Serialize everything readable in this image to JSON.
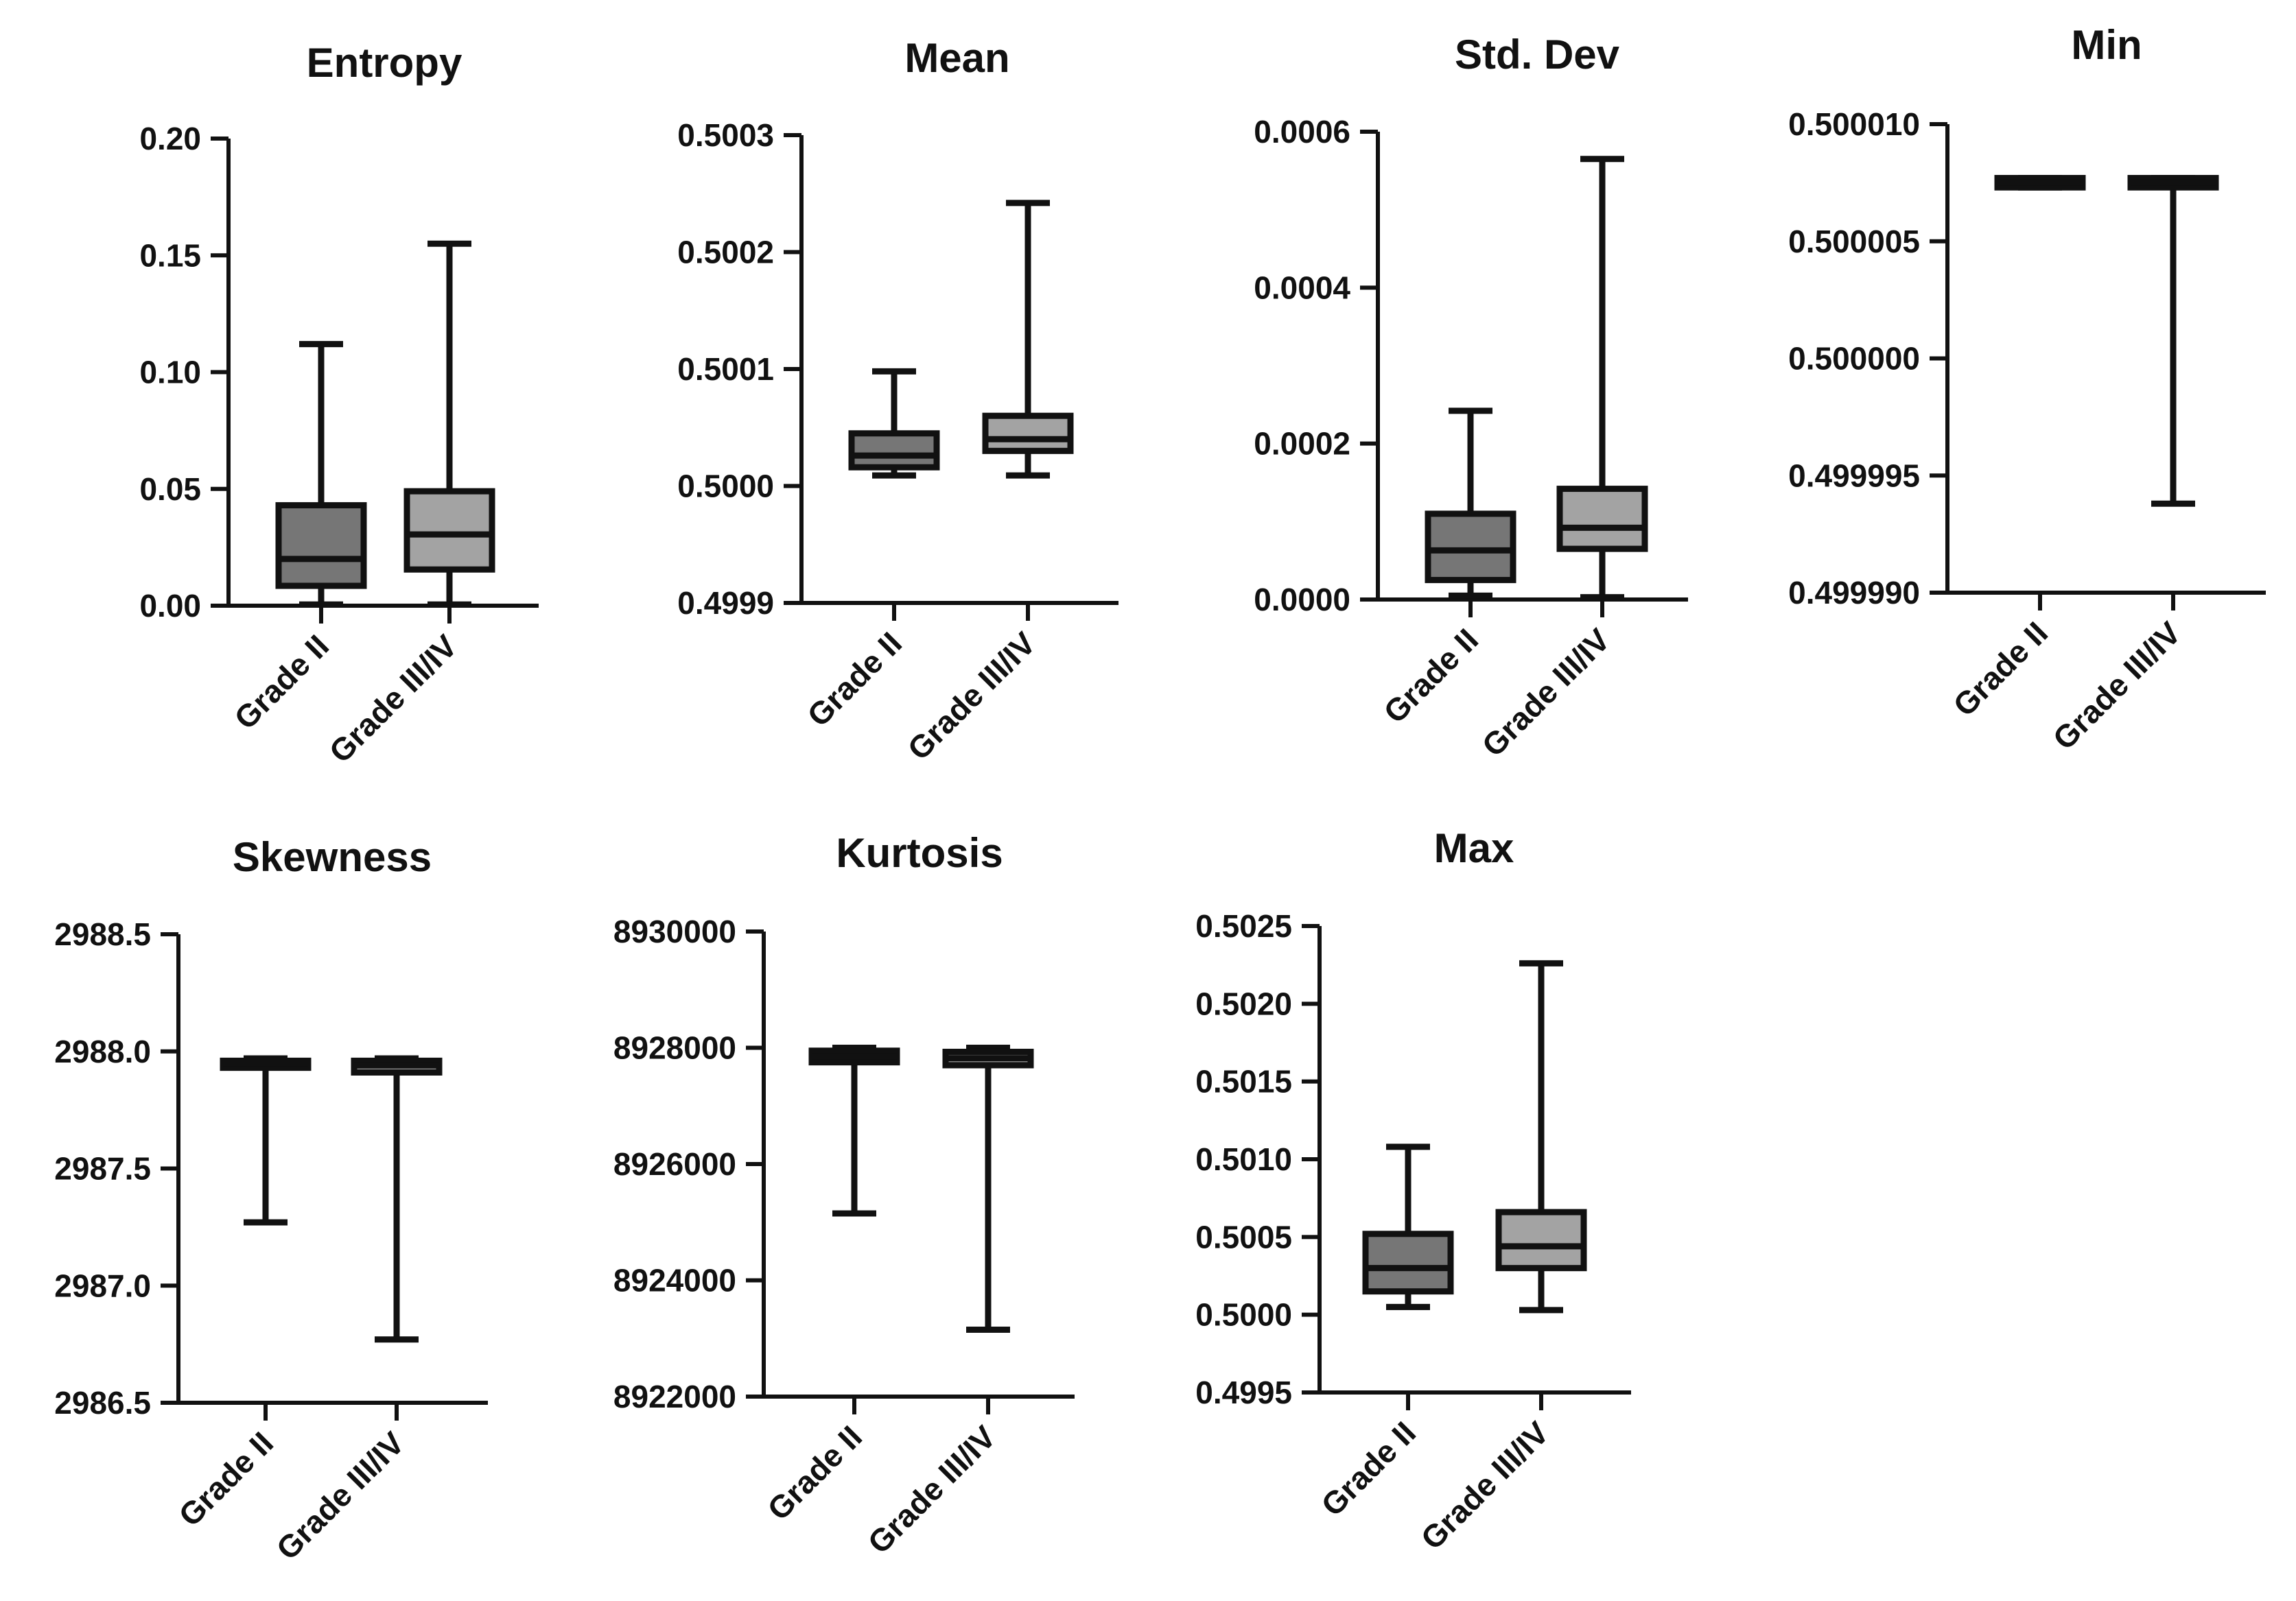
{
  "colors": {
    "grade_ii_box": "#767676",
    "grade_iii_iv_box": "#a3a3a3",
    "line": "#111111"
  },
  "chart_data": [
    {
      "type": "box",
      "title": "Entropy",
      "categories": [
        "Grade II",
        "Grade III/IV"
      ],
      "ylim": [
        0,
        0.2
      ],
      "yticks": [
        "0.00",
        "0.05",
        "0.10",
        "0.15",
        "0.20"
      ],
      "series": [
        {
          "name": "Grade II",
          "min": 0.0005,
          "q1": 0.0085,
          "median": 0.02,
          "q3": 0.043,
          "max": 0.112
        },
        {
          "name": "Grade III/IV",
          "min": 0.0005,
          "q1": 0.0155,
          "median": 0.0305,
          "q3": 0.049,
          "max": 0.155
        }
      ]
    },
    {
      "type": "box",
      "title": "Mean",
      "categories": [
        "Grade II",
        "Grade III/IV"
      ],
      "ylim": [
        0.4999,
        0.5003
      ],
      "yticks": [
        "0.4999",
        "0.5000",
        "0.5001",
        "0.5002",
        "0.5003"
      ],
      "series": [
        {
          "name": "Grade II",
          "min": 0.500009,
          "q1": 0.500016,
          "median": 0.500026,
          "q3": 0.500045,
          "max": 0.500098
        },
        {
          "name": "Grade III/IV",
          "min": 0.500009,
          "q1": 0.50003,
          "median": 0.50004,
          "q3": 0.50006,
          "max": 0.500242
        }
      ]
    },
    {
      "type": "box",
      "title": "Std. Dev",
      "categories": [
        "Grade II",
        "Grade III/IV"
      ],
      "ylim": [
        0,
        0.0006
      ],
      "yticks": [
        "0.0000",
        "0.0002",
        "0.0004",
        "0.0006"
      ],
      "series": [
        {
          "name": "Grade II",
          "min": 5e-06,
          "q1": 2.5e-05,
          "median": 6.3e-05,
          "q3": 0.00011,
          "max": 0.000242
        },
        {
          "name": "Grade III/IV",
          "min": 3e-06,
          "q1": 6.5e-05,
          "median": 9.2e-05,
          "q3": 0.000142,
          "max": 0.000565
        }
      ]
    },
    {
      "type": "box",
      "title": "Min",
      "categories": [
        "Grade II",
        "Grade III/IV"
      ],
      "ylim": [
        0.49999,
        0.50001
      ],
      "yticks": [
        "0.499990",
        "0.499995",
        "0.500000",
        "0.500005",
        "0.500010"
      ],
      "series": [
        {
          "name": "Grade II",
          "min": 0.5000073,
          "q1": 0.5000073,
          "median": 0.5000075,
          "q3": 0.5000077,
          "max": 0.5000077
        },
        {
          "name": "Grade III/IV",
          "min": 0.4999938,
          "q1": 0.5000073,
          "median": 0.5000075,
          "q3": 0.5000077,
          "max": 0.5000077
        }
      ]
    },
    {
      "type": "box",
      "title": "Skewness",
      "categories": [
        "Grade II",
        "Grade III/IV"
      ],
      "ylim": [
        2986.5,
        2988.5
      ],
      "yticks": [
        "2986.5",
        "2987.0",
        "2987.5",
        "2988.0",
        "2988.5"
      ],
      "series": [
        {
          "name": "Grade II",
          "min": 2987.27,
          "q1": 2987.93,
          "median": 2987.95,
          "q3": 2987.96,
          "max": 2987.97
        },
        {
          "name": "Grade III/IV",
          "min": 2986.77,
          "q1": 2987.91,
          "median": 2987.94,
          "q3": 2987.96,
          "max": 2987.97
        }
      ]
    },
    {
      "type": "box",
      "title": "Kurtosis",
      "categories": [
        "Grade II",
        "Grade III/IV"
      ],
      "ylim": [
        8922000,
        8930000
      ],
      "yticks": [
        "8922000",
        "8924000",
        "8926000",
        "8928000",
        "8930000"
      ],
      "series": [
        {
          "name": "Grade II",
          "min": 8925150,
          "q1": 8927750,
          "median": 8927850,
          "q3": 8927950,
          "max": 8928000
        },
        {
          "name": "Grade III/IV",
          "min": 8923150,
          "q1": 8927700,
          "median": 8927820,
          "q3": 8927930,
          "max": 8928000
        }
      ]
    },
    {
      "type": "box",
      "title": "Max",
      "categories": [
        "Grade II",
        "Grade III/IV"
      ],
      "ylim": [
        0.4995,
        0.5025
      ],
      "yticks": [
        "0.4995",
        "0.5000",
        "0.5005",
        "0.5010",
        "0.5015",
        "0.5020",
        "0.5025"
      ],
      "series": [
        {
          "name": "Grade II",
          "min": 0.50005,
          "q1": 0.50015,
          "median": 0.5003,
          "q3": 0.50052,
          "max": 0.50108
        },
        {
          "name": "Grade III/IV",
          "min": 0.50003,
          "q1": 0.5003,
          "median": 0.50044,
          "q3": 0.50066,
          "max": 0.50226
        }
      ]
    }
  ]
}
